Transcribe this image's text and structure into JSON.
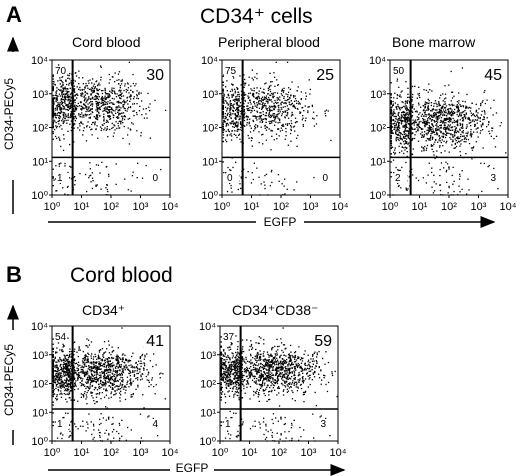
{
  "panel_a": {
    "letter": "A",
    "title": "CD34⁺ cells",
    "y_axis_label": "CD34-PECy5",
    "x_axis_label": "EGFP"
  },
  "panel_b": {
    "letter": "B",
    "title": "Cord blood",
    "y_axis_label": "CD34-PECy5",
    "x_axis_label": "EGFP"
  },
  "chart_data": [
    {
      "type": "scatter",
      "panel": "A",
      "title": "Cord blood",
      "xlabel": "EGFP",
      "ylabel": "CD34-PECy5",
      "x_scale": "log",
      "y_scale": "log",
      "xlim": [
        1,
        10000
      ],
      "ylim": [
        1,
        10000
      ],
      "x_ticks": [
        "10⁰",
        "10¹",
        "10²",
        "10³",
        "10⁴"
      ],
      "y_ticks": [
        "10⁰",
        "10¹",
        "10²",
        "10³",
        "10⁴"
      ],
      "gate": {
        "x": 5,
        "y": 13
      },
      "quadrant_percent": {
        "upper_left": "70",
        "upper_right": "30",
        "lower_left": "1",
        "lower_right": "0"
      },
      "cloud": {
        "center": [
          40,
          500
        ],
        "density": 1100
      }
    },
    {
      "type": "scatter",
      "panel": "A",
      "title": "Peripheral blood",
      "xlabel": "EGFP",
      "ylabel": "CD34-PECy5",
      "x_scale": "log",
      "y_scale": "log",
      "xlim": [
        1,
        10000
      ],
      "ylim": [
        1,
        10000
      ],
      "x_ticks": [
        "10⁰",
        "10¹",
        "10²",
        "10³",
        "10⁴"
      ],
      "y_ticks": [
        "10⁰",
        "10¹",
        "10²",
        "10³",
        "10⁴"
      ],
      "gate": {
        "x": 5,
        "y": 13
      },
      "quadrant_percent": {
        "upper_left": "75",
        "upper_right": "25",
        "lower_left": "0",
        "lower_right": "0"
      },
      "cloud": {
        "center": [
          35,
          350
        ],
        "density": 900
      }
    },
    {
      "type": "scatter",
      "panel": "A",
      "title": "Bone marrow",
      "xlabel": "EGFP",
      "ylabel": "CD34-PECy5",
      "x_scale": "log",
      "y_scale": "log",
      "xlim": [
        1,
        10000
      ],
      "ylim": [
        1,
        10000
      ],
      "x_ticks": [
        "10⁰",
        "10¹",
        "10²",
        "10³",
        "10⁴"
      ],
      "y_ticks": [
        "10⁰",
        "10¹",
        "10²",
        "10³",
        "10⁴"
      ],
      "gate": {
        "x": 5,
        "y": 13
      },
      "quadrant_percent": {
        "upper_left": "50",
        "upper_right": "45",
        "lower_left": "2",
        "lower_right": "3"
      },
      "cloud": {
        "center": [
          60,
          150
        ],
        "density": 1300
      }
    },
    {
      "type": "scatter",
      "panel": "B",
      "title": "CD34⁺",
      "xlabel": "EGFP",
      "ylabel": "CD34-PECy5",
      "x_scale": "log",
      "y_scale": "log",
      "xlim": [
        1,
        10000
      ],
      "ylim": [
        1,
        10000
      ],
      "x_ticks": [
        "10⁰",
        "10¹",
        "10²",
        "10³",
        "10⁴"
      ],
      "y_ticks": [
        "10⁰",
        "10¹",
        "10²",
        "10³",
        "10⁴"
      ],
      "gate": {
        "x": 5,
        "y": 13
      },
      "quadrant_percent": {
        "upper_left": "54",
        "upper_right": "41",
        "lower_left": "1",
        "lower_right": "4"
      },
      "cloud": {
        "center": [
          50,
          250
        ],
        "density": 1400
      }
    },
    {
      "type": "scatter",
      "panel": "B",
      "title": "CD34⁺CD38⁻",
      "xlabel": "EGFP",
      "ylabel": "CD34-PECy5",
      "x_scale": "log",
      "y_scale": "log",
      "xlim": [
        1,
        10000
      ],
      "ylim": [
        1,
        10000
      ],
      "x_ticks": [
        "10⁰",
        "10¹",
        "10²",
        "10³",
        "10⁴"
      ],
      "y_ticks": [
        "10⁰",
        "10¹",
        "10²",
        "10³",
        "10⁴"
      ],
      "gate": {
        "x": 5,
        "y": 13
      },
      "quadrant_percent": {
        "upper_left": "37",
        "upper_right": "59",
        "lower_left": "1",
        "lower_right": "3"
      },
      "cloud": {
        "center": [
          70,
          300
        ],
        "density": 1400
      }
    }
  ]
}
